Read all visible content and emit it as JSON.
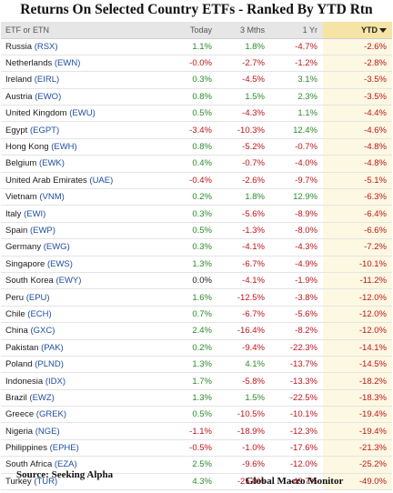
{
  "title": "Returns On Selected Country ETFs - Ranked By YTD Rtn",
  "columns": {
    "name": "ETF or ETN",
    "today": "Today",
    "three_mths": "3 Mths",
    "one_yr": "1 Yr",
    "ytd": "YTD"
  },
  "sort_icon": "sort-desc-caret-icon",
  "colors": {
    "positive": "#2c8a2c",
    "negative": "#c0141b",
    "ticker": "#1f4ea1",
    "ytd_header_bg": "#f5e4a6"
  },
  "rows": [
    {
      "country": "Russia",
      "ticker": "(RSX)",
      "today": "1.1%",
      "three_mths": "1.8%",
      "one_yr": "-4.7%",
      "ytd": "-2.6%"
    },
    {
      "country": "Netherlands",
      "ticker": "(EWN)",
      "today": "-0.0%",
      "three_mths": "-2.7%",
      "one_yr": "-1.2%",
      "ytd": "-2.8%"
    },
    {
      "country": "Ireland",
      "ticker": "(EIRL)",
      "today": "0.3%",
      "three_mths": "-4.5%",
      "one_yr": "3.1%",
      "ytd": "-3.5%"
    },
    {
      "country": "Austria",
      "ticker": "(EWO)",
      "today": "0.8%",
      "three_mths": "1.5%",
      "one_yr": "2.3%",
      "ytd": "-3.5%"
    },
    {
      "country": "United Kingdom",
      "ticker": "(EWU)",
      "today": "0.5%",
      "three_mths": "-4.3%",
      "one_yr": "1.1%",
      "ytd": "-4.4%"
    },
    {
      "country": "Egypt",
      "ticker": "(EGPT)",
      "today": "-3.4%",
      "three_mths": "-10.3%",
      "one_yr": "12.4%",
      "ytd": "-4.6%"
    },
    {
      "country": "Hong Kong",
      "ticker": "(EWH)",
      "today": "0.8%",
      "three_mths": "-5.2%",
      "one_yr": "-0.7%",
      "ytd": "-4.8%"
    },
    {
      "country": "Belgium",
      "ticker": "(EWK)",
      "today": "0.4%",
      "three_mths": "-0.7%",
      "one_yr": "-4.0%",
      "ytd": "-4.8%"
    },
    {
      "country": "United Arab Emirates",
      "ticker": "(UAE)",
      "today": "-0.4%",
      "three_mths": "-2.6%",
      "one_yr": "-9.7%",
      "ytd": "-5.1%"
    },
    {
      "country": "Vietnam",
      "ticker": "(VNM)",
      "today": "0.2%",
      "three_mths": "1.8%",
      "one_yr": "12.9%",
      "ytd": "-6.3%"
    },
    {
      "country": "Italy",
      "ticker": "(EWI)",
      "today": "0.3%",
      "three_mths": "-5.6%",
      "one_yr": "-8.9%",
      "ytd": "-6.4%"
    },
    {
      "country": "Spain",
      "ticker": "(EWP)",
      "today": "0.5%",
      "three_mths": "-1.3%",
      "one_yr": "-8.0%",
      "ytd": "-6.6%"
    },
    {
      "country": "Germany",
      "ticker": "(EWG)",
      "today": "0.3%",
      "three_mths": "-4.1%",
      "one_yr": "-4.3%",
      "ytd": "-7.2%"
    },
    {
      "country": "Singapore",
      "ticker": "(EWS)",
      "today": "1.3%",
      "three_mths": "-6.7%",
      "one_yr": "-4.9%",
      "ytd": "-10.1%"
    },
    {
      "country": "South Korea",
      "ticker": "(EWY)",
      "today": "0.0%",
      "three_mths": "-4.1%",
      "one_yr": "-1.9%",
      "ytd": "-11.2%"
    },
    {
      "country": "Peru",
      "ticker": "(EPU)",
      "today": "1.6%",
      "three_mths": "-12.5%",
      "one_yr": "-3.8%",
      "ytd": "-12.0%"
    },
    {
      "country": "Chile",
      "ticker": "(ECH)",
      "today": "0.7%",
      "three_mths": "-6.7%",
      "one_yr": "-5.6%",
      "ytd": "-12.0%"
    },
    {
      "country": "China",
      "ticker": "(GXC)",
      "today": "2.4%",
      "three_mths": "-16.4%",
      "one_yr": "-8.2%",
      "ytd": "-12.0%"
    },
    {
      "country": "Pakistan",
      "ticker": "(PAK)",
      "today": "0.2%",
      "three_mths": "-9.4%",
      "one_yr": "-22.3%",
      "ytd": "-14.1%"
    },
    {
      "country": "Poland",
      "ticker": "(PLND)",
      "today": "1.3%",
      "three_mths": "4.1%",
      "one_yr": "-13.7%",
      "ytd": "-14.5%"
    },
    {
      "country": "Indonesia",
      "ticker": "(IDX)",
      "today": "1.7%",
      "three_mths": "-5.8%",
      "one_yr": "-13.3%",
      "ytd": "-18.2%"
    },
    {
      "country": "Brazil",
      "ticker": "(EWZ)",
      "today": "1.3%",
      "three_mths": "1.5%",
      "one_yr": "-22.5%",
      "ytd": "-18.3%"
    },
    {
      "country": "Greece",
      "ticker": "(GREK)",
      "today": "0.5%",
      "three_mths": "-10.5%",
      "one_yr": "-10.1%",
      "ytd": "-19.4%"
    },
    {
      "country": "Nigeria",
      "ticker": "(NGE)",
      "today": "-1.1%",
      "three_mths": "-18.9%",
      "one_yr": "-12.3%",
      "ytd": "-19.4%"
    },
    {
      "country": "Philippines",
      "ticker": "(EPHE)",
      "today": "-0.5%",
      "three_mths": "-1.0%",
      "one_yr": "-17.6%",
      "ytd": "-21.3%"
    },
    {
      "country": "South Africa",
      "ticker": "(EZA)",
      "today": "2.5%",
      "three_mths": "-9.6%",
      "one_yr": "-12.0%",
      "ytd": "-25.2%"
    },
    {
      "country": "Turkey",
      "ticker": "(TUR)",
      "today": "4.3%",
      "three_mths": "-25.0%",
      "one_yr": "-49.7%",
      "ytd": "-49.0%"
    }
  ],
  "footer": {
    "source": "Source:  Seeking Alpha",
    "brand": "Global Macro Monitor"
  }
}
